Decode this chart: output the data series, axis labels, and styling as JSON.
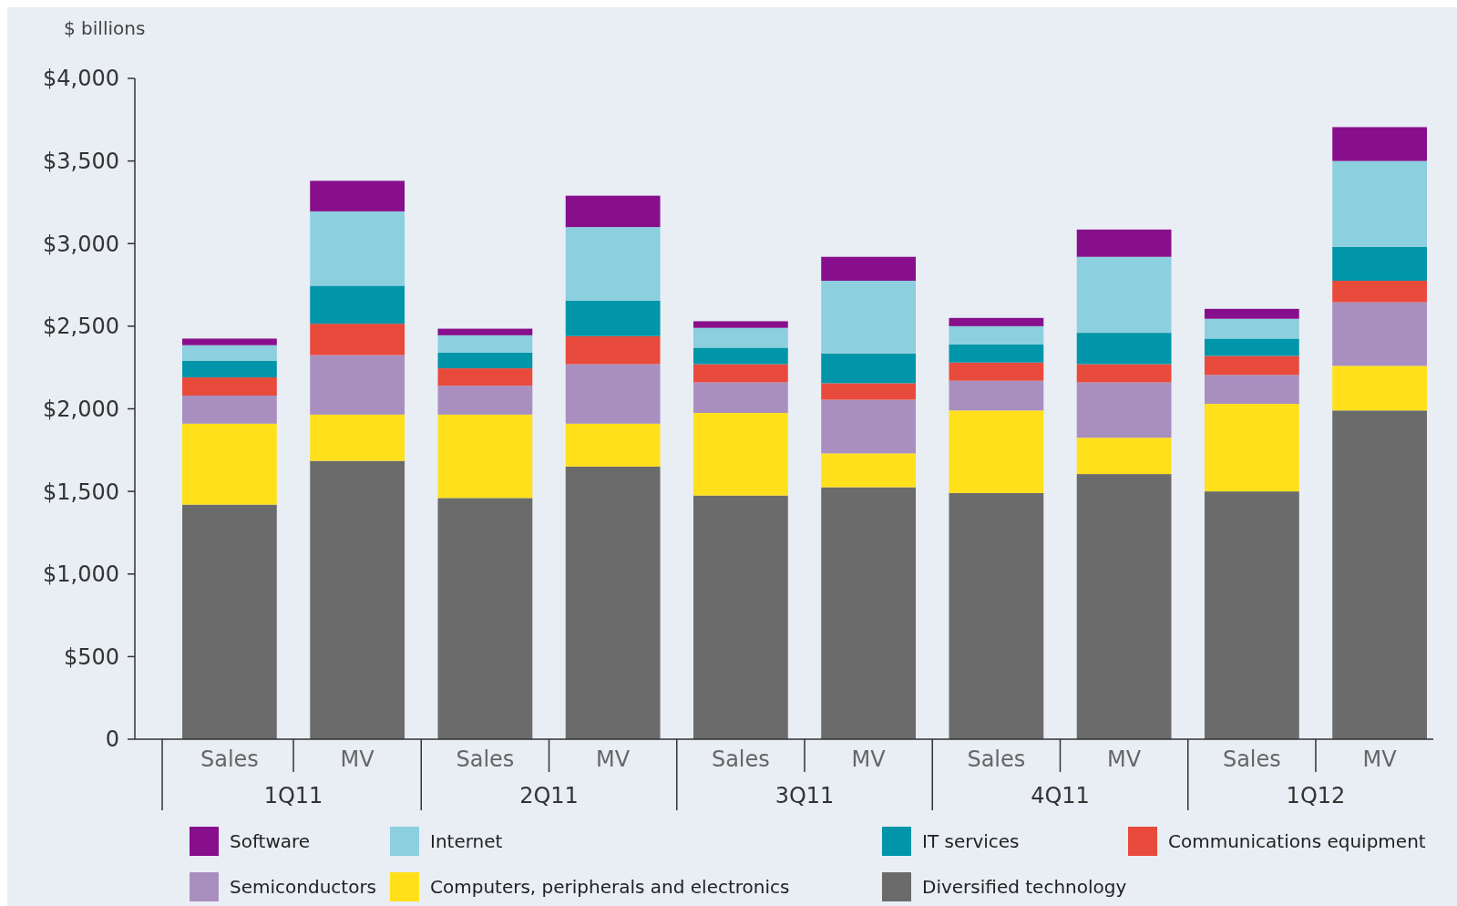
{
  "chart_data": {
    "type": "bar",
    "stacked": true,
    "ylabel": "$ billions",
    "categories": [
      "Sales",
      "MV",
      "Sales",
      "MV",
      "Sales",
      "MV",
      "Sales",
      "MV",
      "Sales",
      "MV"
    ],
    "annotations": [
      "1Q11",
      "2Q11",
      "3Q11",
      "4Q11",
      "1Q12"
    ],
    "ylim": [
      0,
      4000
    ],
    "yticks": [
      {
        "value": 0,
        "label": "0"
      },
      {
        "value": 500,
        "label": "$500"
      },
      {
        "value": 1000,
        "label": "$1,000"
      },
      {
        "value": 1500,
        "label": "$1,500"
      },
      {
        "value": 2000,
        "label": "$2,000"
      },
      {
        "value": 2500,
        "label": "$2,500"
      },
      {
        "value": 3000,
        "label": "$3,000"
      },
      {
        "value": 3500,
        "label": "$3,500"
      },
      {
        "value": 4000,
        "label": "$4,000"
      }
    ],
    "legend": "bottom",
    "grid": false,
    "series": [
      {
        "name": "Diversified technology",
        "color": "#6b6b6b",
        "values": [
          1420,
          1685,
          1460,
          1650,
          1475,
          1525,
          1490,
          1605,
          1500,
          1990
        ]
      },
      {
        "name": "Computers, peripherals and electronics",
        "color": "#ffe01b",
        "values": [
          490,
          280,
          505,
          260,
          500,
          205,
          500,
          220,
          530,
          270
        ]
      },
      {
        "name": "Semiconductors",
        "color": "#a98fc0",
        "values": [
          170,
          360,
          175,
          360,
          185,
          325,
          180,
          335,
          175,
          385
        ]
      },
      {
        "name": "Communications equipment",
        "color": "#e84a3c",
        "values": [
          110,
          190,
          105,
          170,
          110,
          100,
          110,
          110,
          115,
          130
        ]
      },
      {
        "name": "IT services",
        "color": "#0095a9",
        "values": [
          100,
          230,
          95,
          215,
          100,
          180,
          110,
          190,
          105,
          205
        ]
      },
      {
        "name": "Internet",
        "color": "#8ccfdf",
        "values": [
          95,
          450,
          105,
          445,
          120,
          440,
          110,
          460,
          120,
          520
        ]
      },
      {
        "name": "Software",
        "color": "#870f8c",
        "values": [
          40,
          185,
          40,
          190,
          40,
          145,
          50,
          165,
          60,
          205
        ]
      }
    ]
  }
}
